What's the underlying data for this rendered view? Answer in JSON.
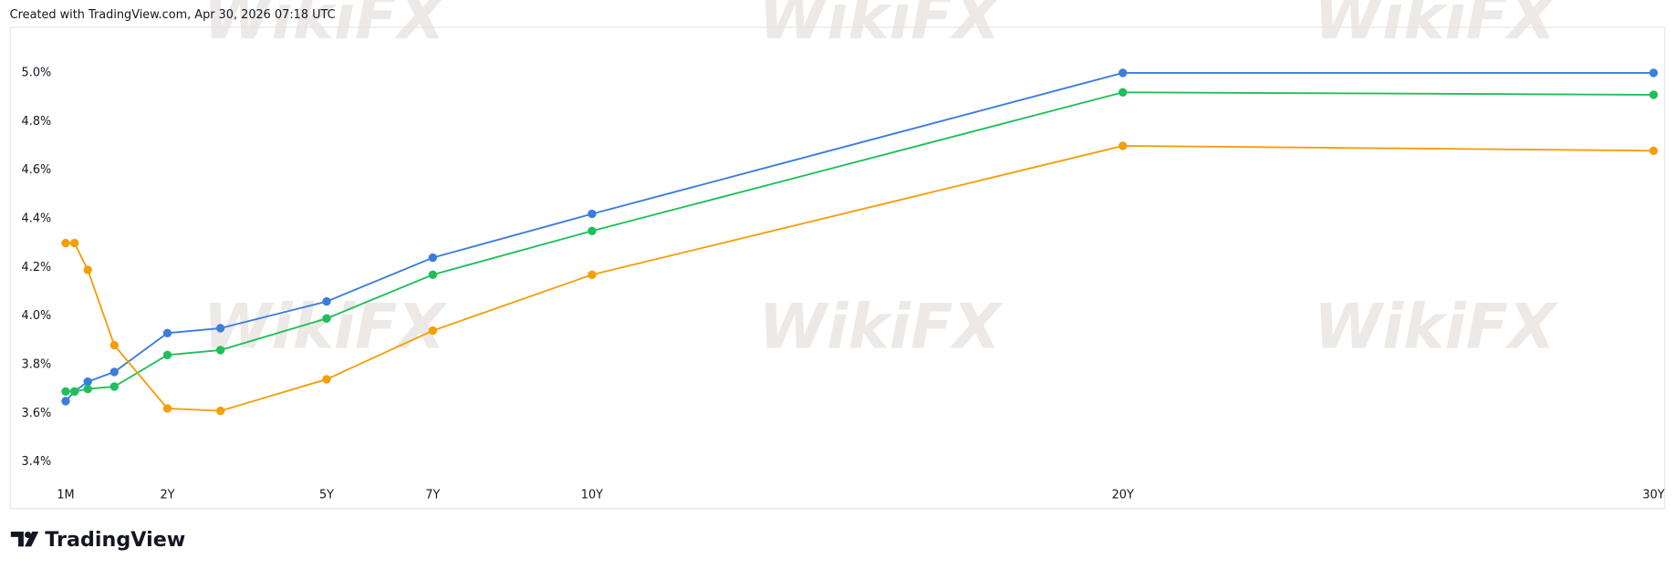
{
  "header": "Created with TradingView.com, Apr 30, 2026 07:18 UTC",
  "logo": "TradingView",
  "watermark": "WikiFX",
  "chart_data": {
    "type": "line",
    "x": [
      0.0833,
      0.25,
      0.5,
      1,
      2,
      3,
      5,
      7,
      10,
      20,
      30
    ],
    "xlim": [
      -0.95,
      30.2
    ],
    "xticks": [
      {
        "value": 0.0833,
        "label": "1M"
      },
      {
        "value": 2,
        "label": "2Y"
      },
      {
        "value": 5,
        "label": "5Y"
      },
      {
        "value": 7,
        "label": "7Y"
      },
      {
        "value": 10,
        "label": "10Y"
      },
      {
        "value": 20,
        "label": "20Y"
      },
      {
        "value": 30,
        "label": "30Y"
      }
    ],
    "ylim": [
      3.21,
      5.19
    ],
    "yticks": [
      {
        "value": 3.4,
        "label": "3.4%"
      },
      {
        "value": 3.6,
        "label": "3.6%"
      },
      {
        "value": 3.8,
        "label": "3.8%"
      },
      {
        "value": 4.0,
        "label": "4.0%"
      },
      {
        "value": 4.2,
        "label": "4.2%"
      },
      {
        "value": 4.4,
        "label": "4.4%"
      },
      {
        "value": 4.6,
        "label": "4.6%"
      },
      {
        "value": 4.8,
        "label": "4.8%"
      },
      {
        "value": 5.0,
        "label": "5.0%"
      }
    ],
    "grid": false,
    "series": [
      {
        "color": "#3b7ddd",
        "values": [
          3.65,
          3.69,
          3.73,
          3.77,
          3.93,
          3.95,
          4.06,
          4.24,
          4.42,
          5.0,
          5.0
        ]
      },
      {
        "color": "#1fbf5a",
        "values": [
          3.69,
          3.69,
          3.7,
          3.71,
          3.84,
          3.86,
          3.99,
          4.17,
          4.35,
          4.92,
          4.91
        ]
      },
      {
        "color": "#f59e0b",
        "values": [
          4.3,
          4.3,
          4.19,
          3.88,
          3.62,
          3.61,
          3.74,
          3.94,
          4.17,
          4.7,
          4.68
        ]
      }
    ]
  }
}
